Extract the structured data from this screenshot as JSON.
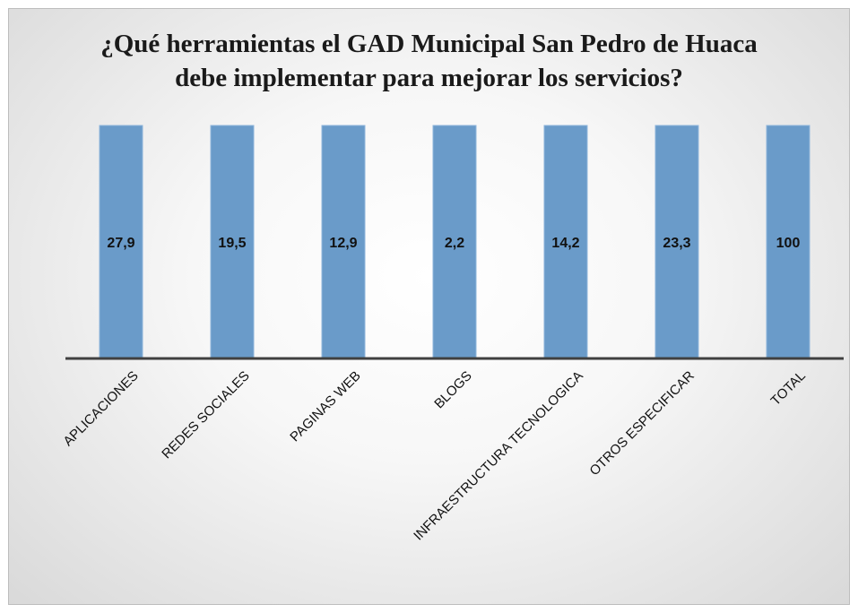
{
  "chart_data": {
    "type": "bar100",
    "title": "¿Qué herramientas el GAD Municipal San Pedro de Huaca debe implementar para mejorar los servicios?",
    "categories": [
      "APLICACIONES",
      "REDES SOCIALES",
      "PAGINAS WEB",
      "BLOGS",
      "INFRAESTRUCTURA TECNOLOGICA",
      "OTROS ESPECIFICAR",
      "TOTAL"
    ],
    "values": [
      27.9,
      19.5,
      12.9,
      2.2,
      14.2,
      23.3,
      100
    ],
    "value_labels": [
      "27,9",
      "19,5",
      "12,9",
      "2,2",
      "14,2",
      "23,3",
      "100"
    ],
    "color": "#6a9bc9"
  }
}
